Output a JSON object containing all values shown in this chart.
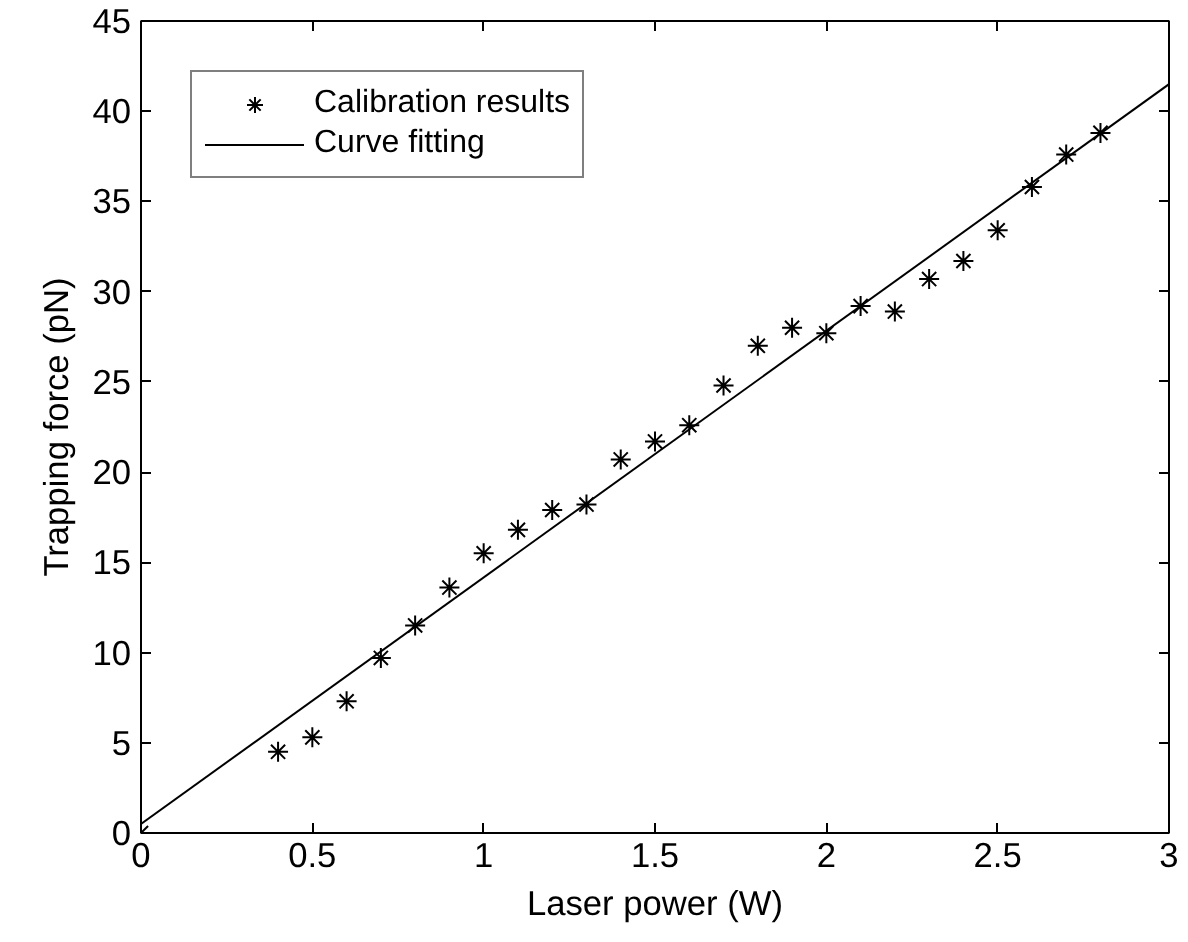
{
  "chart_data": {
    "type": "scatter",
    "xlabel": "Laser power (W)",
    "ylabel": "Trapping force (pN)",
    "xlim": [
      0,
      3
    ],
    "ylim": [
      0,
      45
    ],
    "xticks": [
      0,
      0.5,
      1,
      1.5,
      2,
      2.5,
      3
    ],
    "yticks": [
      0,
      5,
      10,
      15,
      20,
      25,
      30,
      35,
      40,
      45
    ],
    "grid": false,
    "legend": "top left",
    "marker": "cross",
    "series": [
      {
        "name": "Calibration results",
        "color": "#000000",
        "x": [
          0,
          0.4,
          0.5,
          0.6,
          0.7,
          0.8,
          0.9,
          1.0,
          1.1,
          1.2,
          1.3,
          1.4,
          1.5,
          1.6,
          1.7,
          1.8,
          1.9,
          2.0,
          2.1,
          2.2,
          2.3,
          2.4,
          2.5,
          2.6,
          2.7,
          2.8
        ],
        "values": [
          0,
          4.5,
          5.3,
          7.3,
          9.7,
          11.5,
          13.6,
          15.5,
          16.8,
          17.9,
          18.2,
          20.7,
          21.7,
          22.6,
          24.8,
          27.0,
          28.0,
          27.7,
          29.2,
          28.9,
          30.7,
          31.7,
          33.4,
          35.8,
          37.6,
          38.8
        ]
      },
      {
        "name": "Curve fitting",
        "type": "line",
        "color": "#000000",
        "line_style": "solid",
        "marker": "none",
        "x": [
          0,
          3
        ],
        "values": [
          0.5,
          41.5
        ]
      }
    ]
  }
}
